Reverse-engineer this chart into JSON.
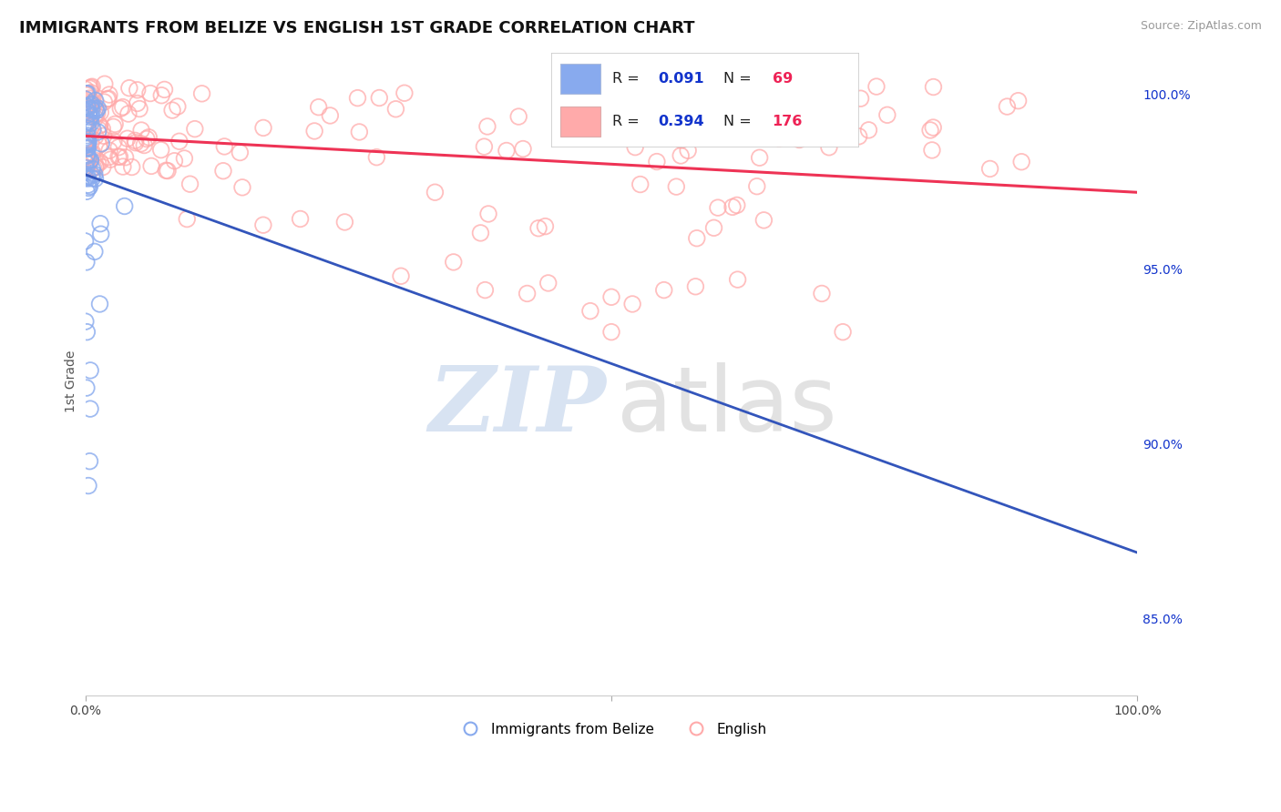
{
  "title": "IMMIGRANTS FROM BELIZE VS ENGLISH 1ST GRADE CORRELATION CHART",
  "source_text": "Source: ZipAtlas.com",
  "ylabel": "1st Grade",
  "xlim": [
    0.0,
    1.0
  ],
  "ylim": [
    0.828,
    1.008
  ],
  "yticks": [
    0.85,
    0.9,
    0.95,
    1.0
  ],
  "ytick_labels": [
    "85.0%",
    "90.0%",
    "95.0%",
    "100.0%"
  ],
  "series": [
    {
      "name": "Immigrants from Belize",
      "R": 0.091,
      "N": 69,
      "color": "#88aaee",
      "trend_color": "#3355bb"
    },
    {
      "name": "English",
      "R": 0.394,
      "N": 176,
      "color": "#ffaaaa",
      "trend_color": "#ee3355"
    }
  ],
  "watermark_zip_color": "#b8cce8",
  "watermark_atlas_color": "#c0c0c0",
  "background_color": "#ffffff",
  "grid_color": "#cccccc",
  "legend_R_color": "#1133cc",
  "legend_N_color": "#ee2255",
  "title_fontsize": 13,
  "source_fontsize": 9,
  "tick_fontsize": 10,
  "ylabel_fontsize": 10
}
